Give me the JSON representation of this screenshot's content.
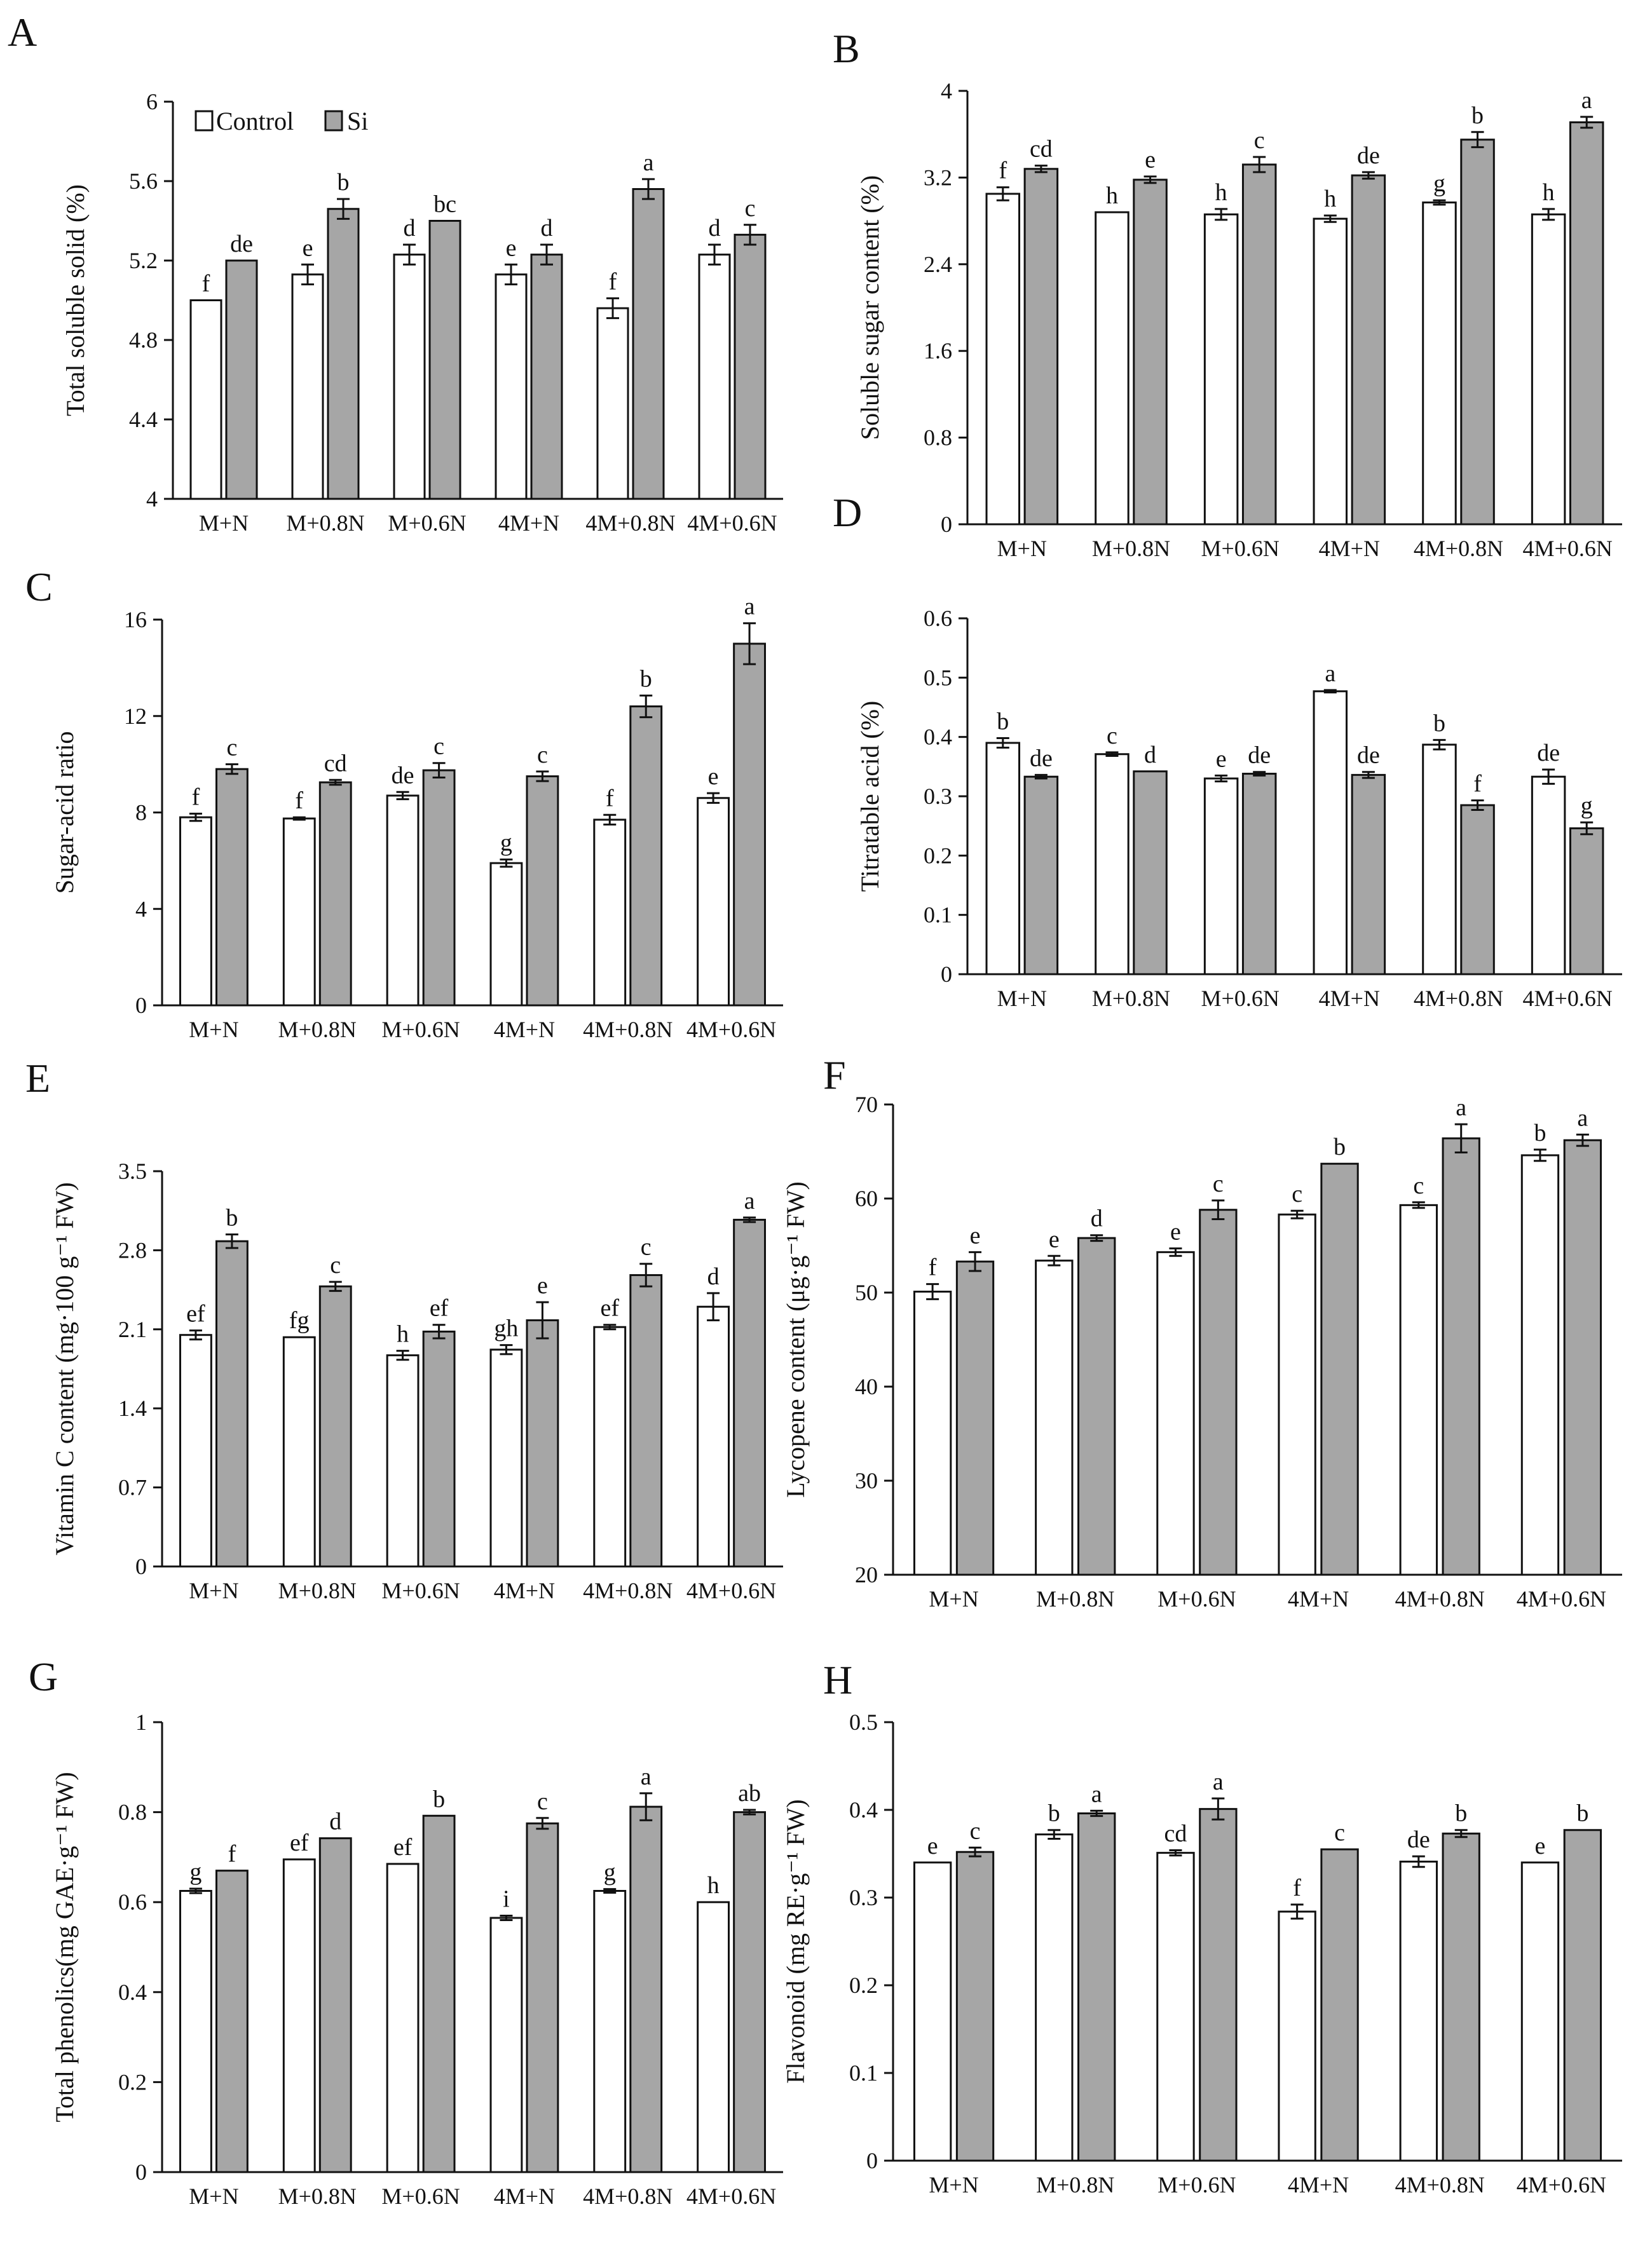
{
  "legend": {
    "control_label": "Control",
    "si_label": "Si"
  },
  "colors": {
    "control": "#ffffff",
    "si": "#a6a6a6",
    "axis": "#111111"
  },
  "chart_data": [
    {
      "panel": "A",
      "type": "bar",
      "ylabel": "Total soluble solid (%)",
      "categories": [
        "M+N",
        "M+0.8N",
        "M+0.6N",
        "4M+N",
        "4M+0.8N",
        "4M+0.6N"
      ],
      "ylim": [
        4,
        6
      ],
      "yticks": [
        "4",
        "4.4",
        "4.8",
        "5.2",
        "5.6",
        "6"
      ],
      "series": [
        {
          "name": "Control",
          "values": [
            5.0,
            5.13,
            5.23,
            5.13,
            4.96,
            5.23
          ],
          "errors": [
            0,
            0.05,
            0.05,
            0.05,
            0.05,
            0.05
          ],
          "letters": [
            "f",
            "e",
            "d",
            "e",
            "f",
            "d"
          ]
        },
        {
          "name": "Si",
          "values": [
            5.2,
            5.46,
            5.4,
            5.23,
            5.56,
            5.33
          ],
          "errors": [
            0,
            0.05,
            0,
            0.05,
            0.05,
            0.05
          ],
          "letters": [
            "de",
            "b",
            "bc",
            "d",
            "a",
            "c"
          ]
        }
      ]
    },
    {
      "panel": "B",
      "type": "bar",
      "ylabel": "Soluble sugar content (%)",
      "categories": [
        "M+N",
        "M+0.8N",
        "M+0.6N",
        "4M+N",
        "4M+0.8N",
        "4M+0.6N"
      ],
      "ylim": [
        0,
        4
      ],
      "yticks": [
        "0",
        "0.8",
        "1.6",
        "2.4",
        "3.2",
        "4"
      ],
      "series": [
        {
          "name": "Control",
          "values": [
            3.05,
            2.88,
            2.86,
            2.82,
            2.97,
            2.86
          ],
          "errors": [
            0.06,
            0,
            0.05,
            0.03,
            0.02,
            0.05
          ],
          "letters": [
            "f",
            "h",
            "h",
            "h",
            "g",
            "h"
          ]
        },
        {
          "name": "Si",
          "values": [
            3.28,
            3.18,
            3.32,
            3.22,
            3.55,
            3.71
          ],
          "errors": [
            0.03,
            0.03,
            0.07,
            0.03,
            0.07,
            0.05
          ],
          "letters": [
            "cd",
            "e",
            "c",
            "de",
            "b",
            "a"
          ]
        }
      ]
    },
    {
      "panel": "C",
      "type": "bar",
      "ylabel": "Sugar-acid ratio",
      "categories": [
        "M+N",
        "M+0.8N",
        "M+0.6N",
        "4M+N",
        "4M+0.8N",
        "4M+0.6N"
      ],
      "ylim": [
        0,
        16
      ],
      "yticks": [
        "0",
        "4",
        "8",
        "12",
        "16"
      ],
      "series": [
        {
          "name": "Control",
          "values": [
            7.8,
            7.75,
            8.7,
            5.9,
            7.7,
            8.6
          ],
          "errors": [
            0.15,
            0.05,
            0.15,
            0.15,
            0.2,
            0.2
          ],
          "letters": [
            "f",
            "f",
            "de",
            "g",
            "f",
            "e"
          ]
        },
        {
          "name": "Si",
          "values": [
            9.8,
            9.25,
            9.75,
            9.5,
            12.4,
            15.0
          ],
          "errors": [
            0.2,
            0.1,
            0.3,
            0.2,
            0.45,
            0.85
          ],
          "letters": [
            "c",
            "cd",
            "c",
            "c",
            "b",
            "a"
          ]
        }
      ]
    },
    {
      "panel": "D",
      "type": "bar",
      "ylabel": "Titratable acid (%)",
      "categories": [
        "M+N",
        "M+0.8N",
        "M+0.6N",
        "4M+N",
        "4M+0.8N",
        "4M+0.6N"
      ],
      "ylim": [
        0,
        0.6
      ],
      "yticks": [
        "0",
        "0.1",
        "0.2",
        "0.3",
        "0.4",
        "0.5",
        "0.6"
      ],
      "series": [
        {
          "name": "Control",
          "values": [
            0.39,
            0.371,
            0.33,
            0.477,
            0.387,
            0.333
          ],
          "errors": [
            0.008,
            0.003,
            0.005,
            0.002,
            0.008,
            0.012
          ],
          "letters": [
            "b",
            "c",
            "e",
            "a",
            "b",
            "de"
          ]
        },
        {
          "name": "Si",
          "values": [
            0.333,
            0.342,
            0.338,
            0.336,
            0.285,
            0.246
          ],
          "errors": [
            0.003,
            0,
            0.003,
            0.005,
            0.008,
            0.01
          ],
          "letters": [
            "de",
            "d",
            "de",
            "de",
            "f",
            "g"
          ]
        }
      ]
    },
    {
      "panel": "E",
      "type": "bar",
      "ylabel": "Vitamin C content (mg·100 g⁻¹ FW)",
      "categories": [
        "M+N",
        "M+0.8N",
        "M+0.6N",
        "4M+N",
        "4M+0.8N",
        "4M+0.6N"
      ],
      "ylim": [
        0,
        3.5
      ],
      "yticks": [
        "0",
        "0.7",
        "1.4",
        "2.1",
        "2.8",
        "3.5"
      ],
      "series": [
        {
          "name": "Control",
          "values": [
            2.05,
            2.03,
            1.87,
            1.92,
            2.12,
            2.3
          ],
          "errors": [
            0.04,
            0,
            0.04,
            0.04,
            0.02,
            0.12
          ],
          "letters": [
            "ef",
            "fg",
            "h",
            "gh",
            "ef",
            "d"
          ]
        },
        {
          "name": "Si",
          "values": [
            2.88,
            2.48,
            2.08,
            2.18,
            2.58,
            3.07
          ],
          "errors": [
            0.06,
            0.04,
            0.06,
            0.16,
            0.1,
            0.02
          ],
          "letters": [
            "b",
            "c",
            "ef",
            "e",
            "c",
            "a"
          ]
        }
      ]
    },
    {
      "panel": "F",
      "type": "bar",
      "ylabel": "Lycopene content (μg·g⁻¹ FW)",
      "categories": [
        "M+N",
        "M+0.8N",
        "M+0.6N",
        "4M+N",
        "4M+0.8N",
        "4M+0.6N"
      ],
      "ylim": [
        20,
        70
      ],
      "yticks": [
        "20",
        "30",
        "40",
        "50",
        "60",
        "70"
      ],
      "series": [
        {
          "name": "Control",
          "values": [
            50.1,
            53.4,
            54.3,
            58.3,
            59.3,
            64.6
          ],
          "errors": [
            0.8,
            0.5,
            0.4,
            0.4,
            0.3,
            0.6
          ],
          "letters": [
            "f",
            "e",
            "e",
            "c",
            "c",
            "b"
          ]
        },
        {
          "name": "Si",
          "values": [
            53.3,
            55.8,
            58.8,
            63.7,
            66.4,
            66.2
          ],
          "errors": [
            1.0,
            0.3,
            1.0,
            0,
            1.5,
            0.6
          ],
          "letters": [
            "e",
            "d",
            "c",
            "b",
            "a",
            "a"
          ]
        }
      ]
    },
    {
      "panel": "G",
      "type": "bar",
      "ylabel": "Total phenolics(mg GAE·g⁻¹ FW)",
      "categories": [
        "M+N",
        "M+0.8N",
        "M+0.6N",
        "4M+N",
        "4M+0.8N",
        "4M+0.6N"
      ],
      "ylim": [
        0,
        1
      ],
      "yticks": [
        "0",
        "0.2",
        "0.4",
        "0.6",
        "0.8",
        "1"
      ],
      "series": [
        {
          "name": "Control",
          "values": [
            0.625,
            0.695,
            0.685,
            0.565,
            0.625,
            0.6
          ],
          "errors": [
            0.005,
            0,
            0,
            0.005,
            0.004,
            0
          ],
          "letters": [
            "g",
            "ef",
            "ef",
            "i",
            "g",
            "h"
          ]
        },
        {
          "name": "Si",
          "values": [
            0.67,
            0.742,
            0.792,
            0.775,
            0.812,
            0.8
          ],
          "errors": [
            0,
            0,
            0,
            0.012,
            0.03,
            0.005
          ],
          "letters": [
            "f",
            "d",
            "b",
            "c",
            "a",
            "ab"
          ]
        }
      ]
    },
    {
      "panel": "H",
      "type": "bar",
      "ylabel": "Flavonoid (mg RE·g⁻¹ FW)",
      "categories": [
        "M+N",
        "M+0.8N",
        "M+0.6N",
        "4M+N",
        "4M+0.8N",
        "4M+0.6N"
      ],
      "ylim": [
        0,
        0.5
      ],
      "yticks": [
        "0",
        "0.1",
        "0.2",
        "0.3",
        "0.4",
        "0.5"
      ],
      "series": [
        {
          "name": "Control",
          "values": [
            0.34,
            0.372,
            0.351,
            0.284,
            0.341,
            0.34
          ],
          "errors": [
            0,
            0.005,
            0.003,
            0.008,
            0.006,
            0
          ],
          "letters": [
            "e",
            "b",
            "cd",
            "f",
            "de",
            "e"
          ]
        },
        {
          "name": "Si",
          "values": [
            0.352,
            0.396,
            0.401,
            0.355,
            0.373,
            0.377
          ],
          "errors": [
            0.005,
            0.003,
            0.012,
            0,
            0.004,
            0
          ],
          "letters": [
            "c",
            "a",
            "a",
            "c",
            "b",
            "b"
          ]
        }
      ]
    }
  ]
}
